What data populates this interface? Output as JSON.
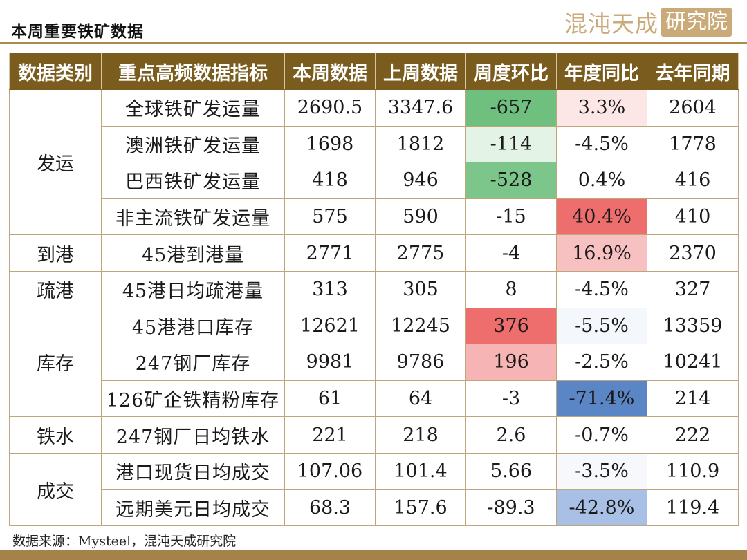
{
  "header": {
    "title": "本周重要铁矿数据",
    "logo_text": "混沌天成",
    "logo_box": "研究院"
  },
  "colors": {
    "header_bg": "#7a5c1e",
    "border": "#bfa57a",
    "green_strong": "#6fbf7f",
    "green_light": "#e3f3e6",
    "red_strong": "#ee6d6d",
    "red_mid": "#f6b4b4",
    "red_light": "#fde6e6",
    "blue_strong": "#5b86c6",
    "blue_light": "#c9d8ef",
    "blue_faint": "#eef3fa"
  },
  "table": {
    "columns": [
      "数据类别",
      "重点高频数据指标",
      "本周数据",
      "上周数据",
      "周度环比",
      "年度同比",
      "去年同期"
    ],
    "groups": [
      {
        "category": "发运",
        "rows": [
          {
            "indicator": "全球铁矿发运量",
            "this_week": "2690.5",
            "last_week": "3347.6",
            "wow": "-657",
            "yoy": "3.3%",
            "last_year": "2604",
            "wow_color": "#6fbf7f",
            "yoy_color": "#fde6e6"
          },
          {
            "indicator": "澳洲铁矿发运量",
            "this_week": "1698",
            "last_week": "1812",
            "wow": "-114",
            "yoy": "-4.5%",
            "last_year": "1778",
            "wow_color": "#e3f3e6",
            "yoy_color": "#ffffff"
          },
          {
            "indicator": "巴西铁矿发运量",
            "this_week": "418",
            "last_week": "946",
            "wow": "-528",
            "yoy": "0.4%",
            "last_year": "416",
            "wow_color": "#7dc68b",
            "yoy_color": "#ffffff"
          },
          {
            "indicator": "非主流铁矿发运量",
            "this_week": "575",
            "last_week": "590",
            "wow": "-15",
            "yoy": "40.4%",
            "last_year": "410",
            "wow_color": "#ffffff",
            "yoy_color": "#ee6d6d"
          }
        ]
      },
      {
        "category": "到港",
        "rows": [
          {
            "indicator": "45港到港量",
            "this_week": "2771",
            "last_week": "2775",
            "wow": "-4",
            "yoy": "16.9%",
            "last_year": "2370",
            "wow_color": "#ffffff",
            "yoy_color": "#f8c1c1"
          }
        ]
      },
      {
        "category": "疏港",
        "rows": [
          {
            "indicator": "45港日均疏港量",
            "this_week": "313",
            "last_week": "305",
            "wow": "8",
            "yoy": "-4.5%",
            "last_year": "327",
            "wow_color": "#ffffff",
            "yoy_color": "#ffffff"
          }
        ]
      },
      {
        "category": "库存",
        "rows": [
          {
            "indicator": "45港港口库存",
            "this_week": "12621",
            "last_week": "12245",
            "wow": "376",
            "yoy": "-5.5%",
            "last_year": "13359",
            "wow_color": "#ee6d6d",
            "yoy_color": "#f4f7fc"
          },
          {
            "indicator": "247钢厂库存",
            "this_week": "9981",
            "last_week": "9786",
            "wow": "196",
            "yoy": "-2.5%",
            "last_year": "10241",
            "wow_color": "#f6b4b4",
            "yoy_color": "#ffffff"
          },
          {
            "indicator": "126矿企铁精粉库存",
            "this_week": "61",
            "last_week": "64",
            "wow": "-3",
            "yoy": "-71.4%",
            "last_year": "214",
            "wow_color": "#ffffff",
            "yoy_color": "#5b86c6"
          }
        ]
      },
      {
        "category": "铁水",
        "rows": [
          {
            "indicator": "247钢厂日均铁水",
            "this_week": "221",
            "last_week": "218",
            "wow": "2.6",
            "yoy": "-0.7%",
            "last_year": "222",
            "wow_color": "#ffffff",
            "yoy_color": "#ffffff"
          }
        ]
      },
      {
        "category": "成交",
        "rows": [
          {
            "indicator": "港口现货日均成交",
            "this_week": "107.06",
            "last_week": "101.4",
            "wow": "5.66",
            "yoy": "-3.5%",
            "last_year": "110.9",
            "wow_color": "#ffffff",
            "yoy_color": "#f6f8fc"
          },
          {
            "indicator": "远期美元日均成交",
            "this_week": "68.3",
            "last_week": "157.6",
            "wow": "-89.3",
            "yoy": "-42.8%",
            "last_year": "119.4",
            "wow_color": "#ffffff",
            "yoy_color": "#a9c0e6"
          }
        ]
      }
    ]
  },
  "footer": {
    "source": "数据来源：Mysteel，混沌天成研究院"
  }
}
